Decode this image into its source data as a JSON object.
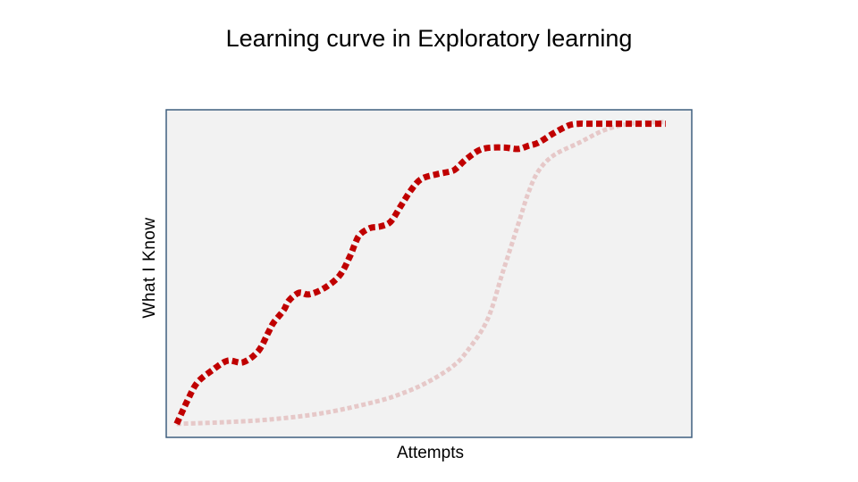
{
  "chart_data": {
    "type": "line",
    "title": "Learning curve in Exploratory learning",
    "xlabel": "Attempts",
    "ylabel": "What I Know",
    "xlim": [
      0,
      100
    ],
    "ylim": [
      0,
      100
    ],
    "grid": false,
    "legend": "none",
    "ticks": "none",
    "colors": {
      "plot_background": "#f2f2f2",
      "plot_border": "#3f5f7f",
      "primary": "#c00000",
      "secondary": "#e6c8c8"
    },
    "series": [
      {
        "style": "dotted-thick",
        "color": "#c00000",
        "x": [
          1,
          3,
          5,
          8,
          11,
          14,
          17,
          19,
          20,
          22,
          23,
          25,
          27,
          30,
          33,
          35,
          36,
          37,
          39,
          41,
          43,
          45,
          47,
          49,
          52,
          55,
          56,
          58,
          61,
          65,
          68,
          70,
          72,
          75,
          78,
          80,
          81,
          83,
          85,
          87,
          90,
          93,
          95,
          97
        ],
        "y": [
          2,
          9,
          15,
          19,
          22,
          21.5,
          25,
          31,
          34,
          38,
          41,
          43.5,
          43,
          45,
          49,
          55,
          59,
          62,
          64,
          64.5,
          66,
          71,
          76,
          79.5,
          81,
          82,
          83,
          86,
          89,
          89.5,
          89,
          90,
          91,
          94,
          96.5,
          97,
          97,
          97,
          97,
          97,
          97,
          97,
          97,
          97
        ]
      },
      {
        "style": "dotted-faint",
        "color": "#e6c8c8",
        "x": [
          1,
          10,
          20,
          30,
          40,
          45,
          50,
          55,
          58,
          62,
          65,
          68,
          70,
          72,
          75,
          80,
          85,
          90,
          95,
          97
        ],
        "y": [
          2,
          2.5,
          3.5,
          5.5,
          9,
          11.5,
          15,
          20,
          25,
          35,
          50,
          65,
          75,
          82,
          87,
          91,
          95,
          97,
          97.5,
          97.5
        ]
      }
    ]
  }
}
